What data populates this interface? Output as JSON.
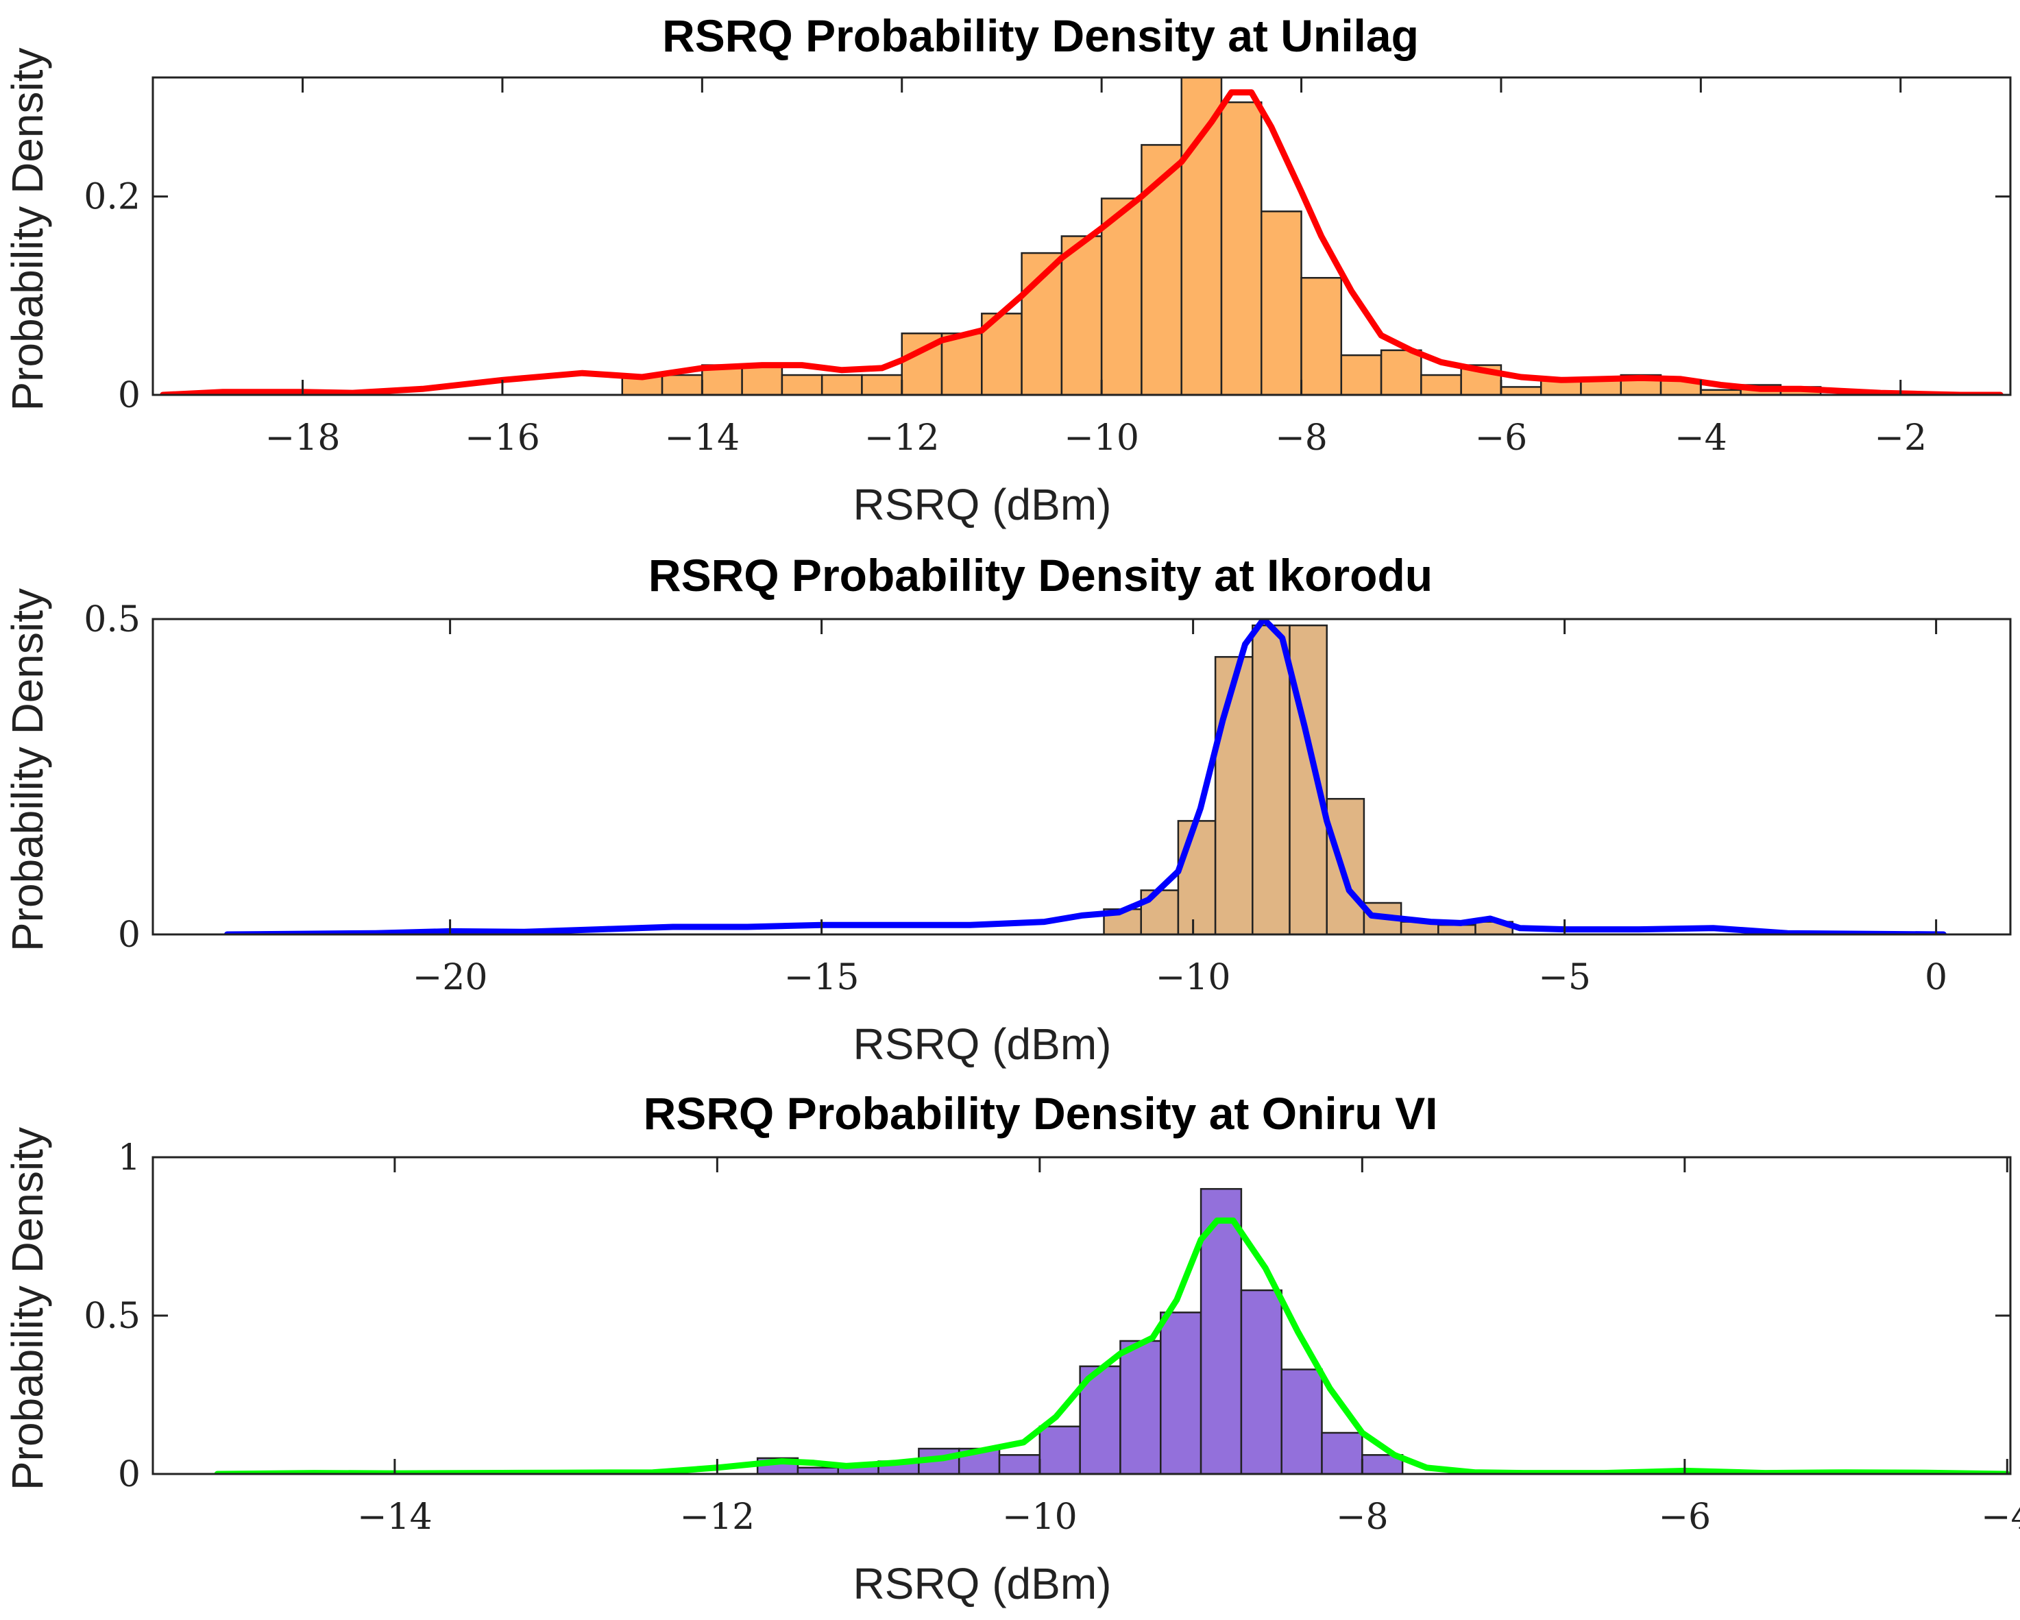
{
  "chart_data": [
    {
      "type": "histogram",
      "title": "RSRQ Probability Density at Unilag",
      "xlabel": "RSRQ (dBm)",
      "ylabel": "Probability Density",
      "xlim": [
        -19.5,
        -0.9
      ],
      "ylim": [
        0,
        0.32
      ],
      "xticks": [
        -18,
        -16,
        -14,
        -12,
        -10,
        -8,
        -6,
        -4,
        -2
      ],
      "xtick_labels": [
        "−18",
        "−16",
        "−14",
        "−12",
        "−10",
        "−8",
        "−6",
        "−4",
        "−2"
      ],
      "yticks": [
        0,
        0.2
      ],
      "ytick_labels": [
        "0",
        "0.2"
      ],
      "bar_color": "#FDB366",
      "curve_color": "#FF0000",
      "bins": {
        "edges": [
          -14.8,
          -14.4,
          -14.0,
          -13.6,
          -13.2,
          -12.8,
          -12.4,
          -12.0,
          -11.6,
          -11.2,
          -10.8,
          -10.4,
          -10.0,
          -9.6,
          -9.2,
          -8.8,
          -8.4,
          -8.0,
          -7.6,
          -7.2,
          -6.8,
          -6.4,
          -6.0,
          -5.6,
          -5.2,
          -4.8,
          -4.4,
          -4.0,
          -3.6,
          -3.2,
          -2.8
        ],
        "values": [
          0.02,
          0.02,
          0.03,
          0.03,
          0.02,
          0.02,
          0.02,
          0.062,
          0.062,
          0.082,
          0.143,
          0.16,
          0.198,
          0.252,
          0.32,
          0.295,
          0.185,
          0.118,
          0.04,
          0.045,
          0.02,
          0.03,
          0.008,
          0.015,
          0.015,
          0.02,
          0.015,
          0.005,
          0.01,
          0.008
        ]
      },
      "curve": {
        "x": [
          -19.4,
          -18.8,
          -18.0,
          -17.5,
          -16.8,
          -16.0,
          -15.2,
          -14.6,
          -14.0,
          -13.4,
          -13.0,
          -12.6,
          -12.2,
          -12.0,
          -11.6,
          -11.2,
          -10.8,
          -10.4,
          -10.0,
          -9.6,
          -9.2,
          -8.9,
          -8.7,
          -8.5,
          -8.3,
          -8.0,
          -7.8,
          -7.5,
          -7.2,
          -6.9,
          -6.6,
          -6.2,
          -5.8,
          -5.4,
          -5.0,
          -4.6,
          -4.2,
          -3.8,
          -3.4,
          -3.0,
          -2.6,
          -2.2,
          -1.8,
          -1.4,
          -1.0
        ],
        "y": [
          0.0,
          0.003,
          0.003,
          0.002,
          0.006,
          0.015,
          0.022,
          0.018,
          0.027,
          0.03,
          0.03,
          0.025,
          0.027,
          0.035,
          0.055,
          0.065,
          0.1,
          0.138,
          0.168,
          0.2,
          0.235,
          0.275,
          0.305,
          0.305,
          0.27,
          0.205,
          0.16,
          0.105,
          0.06,
          0.045,
          0.033,
          0.025,
          0.018,
          0.015,
          0.016,
          0.017,
          0.016,
          0.01,
          0.006,
          0.006,
          0.004,
          0.002,
          0.001,
          0.0,
          0.0
        ]
      }
    },
    {
      "type": "histogram",
      "title": "RSRQ Probability Density at Ikorodu",
      "xlabel": "RSRQ (dBm)",
      "ylabel": "Probability Density",
      "xlim": [
        -24.0,
        1.0
      ],
      "ylim": [
        0,
        0.5
      ],
      "xticks": [
        -20,
        -15,
        -10,
        -5,
        0
      ],
      "xtick_labels": [
        "−20",
        "−15",
        "−10",
        "−5",
        "0"
      ],
      "yticks": [
        0,
        0.5
      ],
      "ytick_labels": [
        "0",
        "0.5"
      ],
      "bar_color": "#E0B584",
      "curve_color": "#0000FF",
      "bins": {
        "edges": [
          -11.2,
          -10.7,
          -10.2,
          -9.7,
          -9.2,
          -8.7,
          -8.2,
          -7.7,
          -7.2,
          -6.7,
          -6.2,
          -5.7
        ],
        "values": [
          0.04,
          0.07,
          0.18,
          0.44,
          0.49,
          0.49,
          0.215,
          0.05,
          0.02,
          0.015,
          0.02
        ]
      },
      "curve": {
        "x": [
          -23.0,
          -22.0,
          -21.0,
          -20.0,
          -19.0,
          -18.0,
          -17.0,
          -16.0,
          -15.0,
          -14.0,
          -13.0,
          -12.0,
          -11.5,
          -11.0,
          -10.6,
          -10.2,
          -9.9,
          -9.6,
          -9.3,
          -9.05,
          -8.8,
          -8.5,
          -8.2,
          -7.9,
          -7.6,
          -7.2,
          -6.8,
          -6.4,
          -6.0,
          -5.6,
          -5.0,
          -4.0,
          -3.0,
          -2.0,
          -1.0,
          0.1
        ],
        "y": [
          0.0,
          0.001,
          0.002,
          0.005,
          0.004,
          0.008,
          0.012,
          0.012,
          0.015,
          0.015,
          0.015,
          0.02,
          0.03,
          0.035,
          0.055,
          0.1,
          0.2,
          0.34,
          0.46,
          0.5,
          0.47,
          0.33,
          0.18,
          0.07,
          0.03,
          0.025,
          0.02,
          0.018,
          0.025,
          0.01,
          0.008,
          0.008,
          0.01,
          0.002,
          0.001,
          0.0
        ]
      }
    },
    {
      "type": "histogram",
      "title": "RSRQ Probability Density at Oniru VI",
      "xlabel": "RSRQ (dBm)",
      "ylabel": "Probability Density",
      "xlim": [
        -15.5,
        -3.98
      ],
      "ylim": [
        0,
        1.0
      ],
      "xticks": [
        -14,
        -12,
        -10,
        -8,
        -6,
        -4
      ],
      "xtick_labels": [
        "−14",
        "−12",
        "−10",
        "−8",
        "−6",
        "−4"
      ],
      "yticks": [
        0,
        0.5,
        1
      ],
      "ytick_labels": [
        "0",
        "0.5",
        "1"
      ],
      "bar_color": "#9370DB",
      "curve_color": "#00FF00",
      "bins": {
        "edges": [
          -11.75,
          -11.5,
          -11.25,
          -11.0,
          -10.75,
          -10.5,
          -10.25,
          -10.0,
          -9.75,
          -9.5,
          -9.25,
          -9.0,
          -8.75,
          -8.5,
          -8.25,
          -8.0,
          -7.75
        ],
        "values": [
          0.05,
          0.02,
          0.03,
          0.04,
          0.08,
          0.08,
          0.06,
          0.15,
          0.34,
          0.42,
          0.51,
          0.9,
          0.58,
          0.33,
          0.13,
          0.06
        ]
      },
      "curve": {
        "x": [
          -15.1,
          -14.5,
          -14.0,
          -13.0,
          -12.4,
          -12.0,
          -11.6,
          -11.4,
          -11.2,
          -10.9,
          -10.6,
          -10.3,
          -10.1,
          -9.9,
          -9.7,
          -9.5,
          -9.3,
          -9.15,
          -9.0,
          -8.9,
          -8.8,
          -8.6,
          -8.4,
          -8.2,
          -8.0,
          -7.8,
          -7.6,
          -7.3,
          -7.0,
          -6.5,
          -6.0,
          -5.5,
          -5.0,
          -4.5,
          -4.0
        ],
        "y": [
          0.0,
          0.003,
          0.002,
          0.004,
          0.005,
          0.02,
          0.04,
          0.035,
          0.025,
          0.035,
          0.05,
          0.08,
          0.1,
          0.18,
          0.3,
          0.38,
          0.43,
          0.55,
          0.74,
          0.8,
          0.8,
          0.65,
          0.45,
          0.27,
          0.13,
          0.06,
          0.02,
          0.005,
          0.003,
          0.003,
          0.01,
          0.003,
          0.005,
          0.004,
          0.0
        ]
      }
    }
  ]
}
